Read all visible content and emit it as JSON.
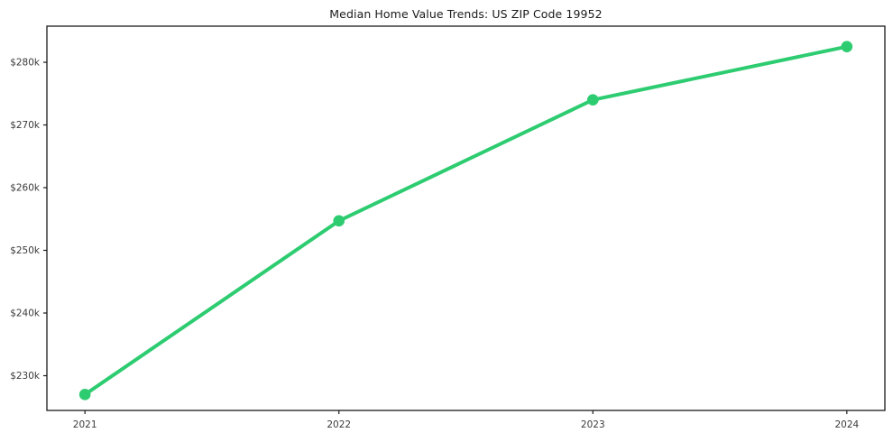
{
  "chart_data": {
    "type": "line",
    "title": "Median Home Value Trends: US ZIP Code 19952",
    "x": [
      "2021",
      "2022",
      "2023",
      "2024"
    ],
    "values": [
      227000,
      254700,
      274000,
      282500
    ],
    "xlabel": "",
    "ylabel": "",
    "ytick_values": [
      230000,
      240000,
      250000,
      260000,
      270000,
      280000
    ],
    "ytick_labels": [
      "$230k",
      "$240k",
      "$250k",
      "$260k",
      "$270k",
      "$280k"
    ],
    "ylim": [
      224460,
      285760
    ],
    "grid": false,
    "legend": "none",
    "line_color": "#2ecc71",
    "axis_color": "#1a1a1a",
    "tick_label_color": "#3a3a3a",
    "marker": "circle"
  }
}
